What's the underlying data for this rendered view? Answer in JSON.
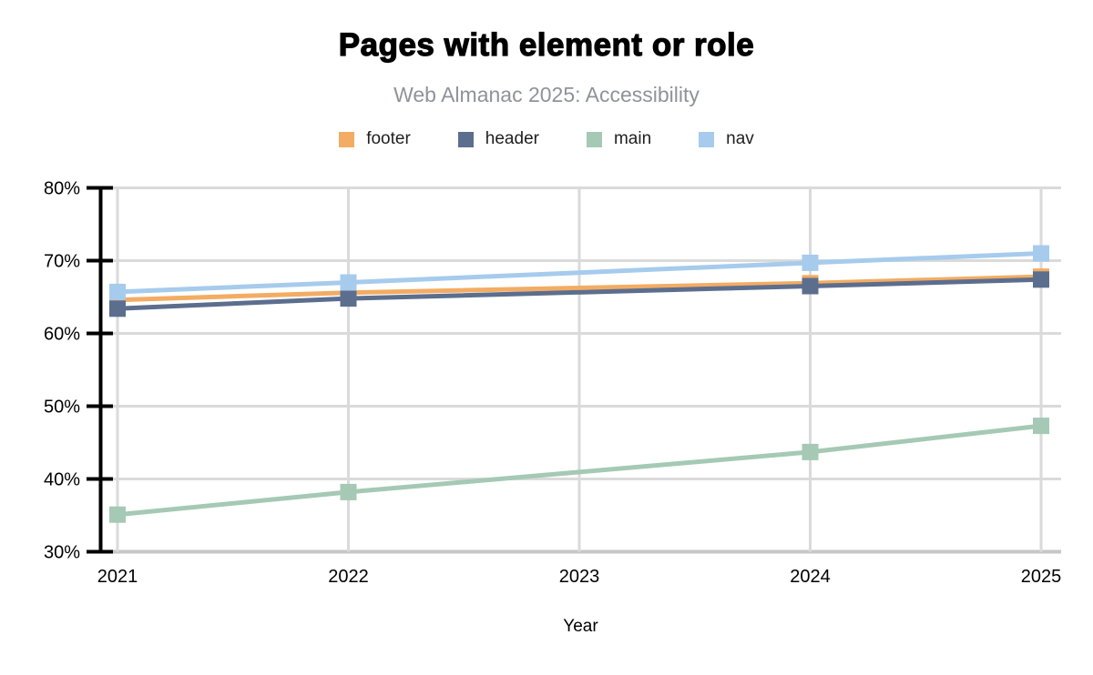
{
  "chart_data": {
    "type": "line",
    "title": "Pages with element or role",
    "subtitle": "Web Almanac 2025: Accessibility",
    "xlabel": "Year",
    "x_range": [
      2021,
      2025
    ],
    "x_ticks": [
      2021,
      2022,
      2023,
      2024,
      2025
    ],
    "ylim": [
      30,
      80
    ],
    "y_ticks": [
      80,
      70,
      60,
      50,
      40,
      30
    ],
    "y_tick_format": "{v}%",
    "grid": true,
    "legend_position": "top",
    "marker": "square",
    "series": [
      {
        "name": "footer",
        "color": "#f3ac63",
        "x": [
          2021,
          2022,
          2024,
          2025
        ],
        "values": [
          64.6,
          65.6,
          66.9,
          67.8
        ]
      },
      {
        "name": "header",
        "color": "#5c6e8e",
        "x": [
          2021,
          2022,
          2024,
          2025
        ],
        "values": [
          63.4,
          64.8,
          66.5,
          67.4
        ]
      },
      {
        "name": "main",
        "color": "#a5c9b4",
        "x": [
          2021,
          2022,
          2024,
          2025
        ],
        "values": [
          35.1,
          38.2,
          43.7,
          47.3
        ]
      },
      {
        "name": "nav",
        "color": "#a6cbed",
        "x": [
          2021,
          2022,
          2024,
          2025
        ],
        "values": [
          65.7,
          67.0,
          69.7,
          71.0
        ]
      }
    ]
  }
}
